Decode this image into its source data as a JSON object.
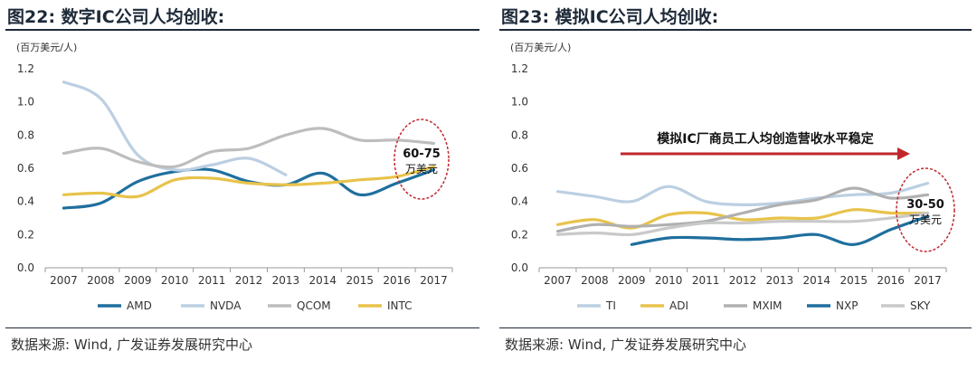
{
  "charts": [
    {
      "title": "图22: 数字IC公司人均创收:",
      "source": "数据来源: Wind, 广发证券发展研究中心",
      "chart_data": {
        "type": "line",
        "yunit": "(百万美元/人)",
        "ylim": [
          0,
          1.2
        ],
        "yticks": [
          "0.0",
          "0.2",
          "0.4",
          "0.6",
          "0.8",
          "1.0",
          "1.2"
        ],
        "categories": [
          "2007",
          "2008",
          "2009",
          "2010",
          "2011",
          "2012",
          "2013",
          "2014",
          "2015",
          "2016",
          "2017"
        ],
        "series": [
          {
            "name": "AMD",
            "color": "#1f6f9e",
            "values": [
              0.36,
              0.39,
              0.52,
              0.58,
              0.59,
              0.52,
              0.5,
              0.57,
              0.44,
              0.51,
              0.59
            ]
          },
          {
            "name": "NVDA",
            "color": "#bccfe2",
            "values": [
              1.12,
              1.02,
              0.68,
              0.59,
              0.62,
              0.66,
              0.56,
              null,
              null,
              null,
              null
            ]
          },
          {
            "name": "QCOM",
            "color": "#bdbdbd",
            "values": [
              0.69,
              0.72,
              0.64,
              0.61,
              0.7,
              0.72,
              0.8,
              0.84,
              0.77,
              0.77,
              0.75
            ]
          },
          {
            "name": "INTC",
            "color": "#e8c34b",
            "values": [
              0.44,
              0.45,
              0.43,
              0.53,
              0.54,
              0.51,
              0.5,
              0.51,
              0.53,
              0.55,
              0.61
            ]
          }
        ],
        "annotations": [
          {
            "kind": "ellipse",
            "text_line1": "60-75",
            "text_line2": "万美元"
          }
        ],
        "legend_position": "bottom"
      }
    },
    {
      "title": "图23: 模拟IC公司人均创收:",
      "source": "数据来源: Wind, 广发证券发展研究中心",
      "chart_data": {
        "type": "line",
        "yunit": "(百万美元/人)",
        "ylim": [
          0,
          1.2
        ],
        "yticks": [
          "0.0",
          "0.2",
          "0.4",
          "0.6",
          "0.8",
          "1.0",
          "1.2"
        ],
        "categories": [
          "2007",
          "2008",
          "2009",
          "2010",
          "2011",
          "2012",
          "2013",
          "2014",
          "2015",
          "2016",
          "2017"
        ],
        "series": [
          {
            "name": "TI",
            "color": "#bccfe2",
            "values": [
              0.46,
              0.43,
              0.4,
              0.49,
              0.4,
              0.38,
              0.39,
              0.42,
              0.44,
              0.45,
              0.51
            ]
          },
          {
            "name": "ADI",
            "color": "#e8c34b",
            "values": [
              0.26,
              0.29,
              0.24,
              0.32,
              0.33,
              0.29,
              0.3,
              0.3,
              0.35,
              0.33,
              0.33
            ]
          },
          {
            "name": "MXIM",
            "color": "#b0b0b0",
            "values": [
              0.22,
              0.26,
              0.25,
              0.26,
              0.28,
              0.33,
              0.38,
              0.41,
              0.48,
              0.42,
              0.44
            ]
          },
          {
            "name": "NXP",
            "color": "#1f6f9e",
            "values": [
              null,
              null,
              0.14,
              0.18,
              0.18,
              0.17,
              0.18,
              0.2,
              0.14,
              0.23,
              0.31
            ]
          },
          {
            "name": "SKY",
            "color": "#c9c9c9",
            "values": [
              0.2,
              0.21,
              0.2,
              0.24,
              0.27,
              0.27,
              0.28,
              0.28,
              0.28,
              0.3,
              0.33
            ]
          }
        ],
        "annotations": [
          {
            "kind": "arrow",
            "text": "模拟IC厂商员工人均创造营收水平稳定"
          },
          {
            "kind": "ellipse",
            "text_line1": "30-50",
            "text_line2": "万美元"
          }
        ],
        "legend_position": "bottom"
      }
    }
  ]
}
